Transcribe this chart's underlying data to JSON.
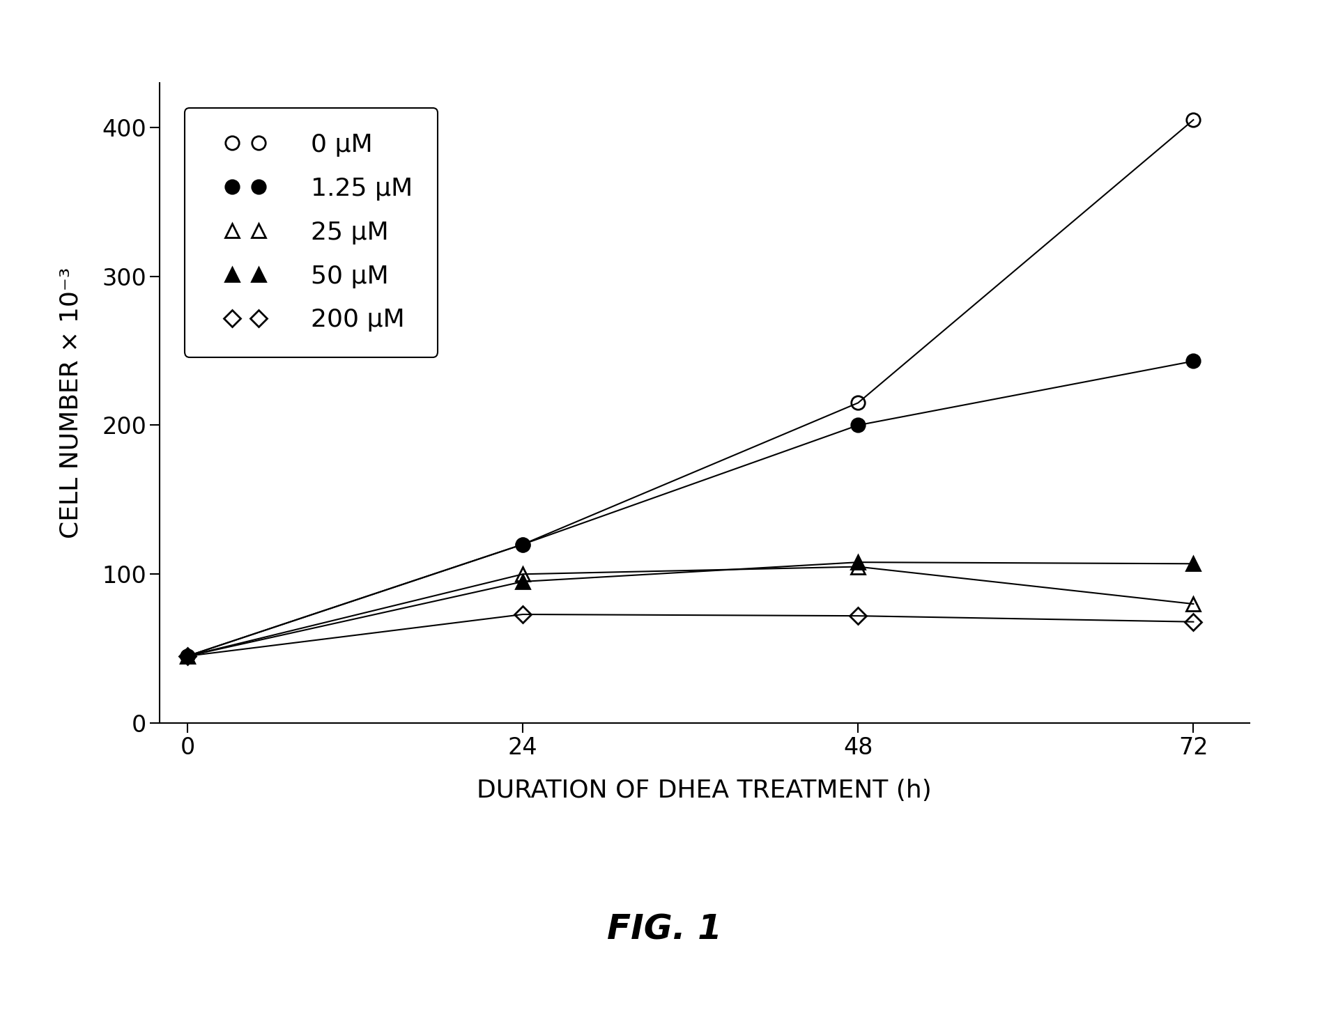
{
  "x": [
    0,
    24,
    48,
    72
  ],
  "series": [
    {
      "label": "0 μM",
      "values": [
        45,
        120,
        215,
        405
      ],
      "marker": "o",
      "fillstyle": "none",
      "color": "#000000",
      "linewidth": 1.5,
      "markersize": 14
    },
    {
      "label": "1.25 μM",
      "values": [
        45,
        120,
        200,
        243
      ],
      "marker": "o",
      "fillstyle": "full",
      "color": "#000000",
      "linewidth": 1.5,
      "markersize": 14
    },
    {
      "label": "25 μM",
      "values": [
        45,
        100,
        105,
        80
      ],
      "marker": "^",
      "fillstyle": "none",
      "color": "#000000",
      "linewidth": 1.5,
      "markersize": 14
    },
    {
      "label": "50 μM",
      "values": [
        45,
        95,
        108,
        107
      ],
      "marker": "^",
      "fillstyle": "full",
      "color": "#000000",
      "linewidth": 1.5,
      "markersize": 14
    },
    {
      "label": "200 μM",
      "values": [
        45,
        73,
        72,
        68
      ],
      "marker": "D",
      "fillstyle": "none",
      "color": "#000000",
      "linewidth": 1.5,
      "markersize": 12
    }
  ],
  "xlabel": "DURATION OF DHEA TREATMENT (h)",
  "ylabel": "CELL NUMBER × 10⁻³",
  "ylim": [
    0,
    430
  ],
  "xlim": [
    -2,
    76
  ],
  "yticks": [
    0,
    100,
    200,
    300,
    400
  ],
  "xticks": [
    0,
    24,
    48,
    72
  ],
  "fig_title": "FIG. 1",
  "background_color": "#ffffff",
  "legend_labels": [
    "0 μM",
    "1.25 μM",
    "25 μM",
    "50 μM",
    "200 μM"
  ]
}
